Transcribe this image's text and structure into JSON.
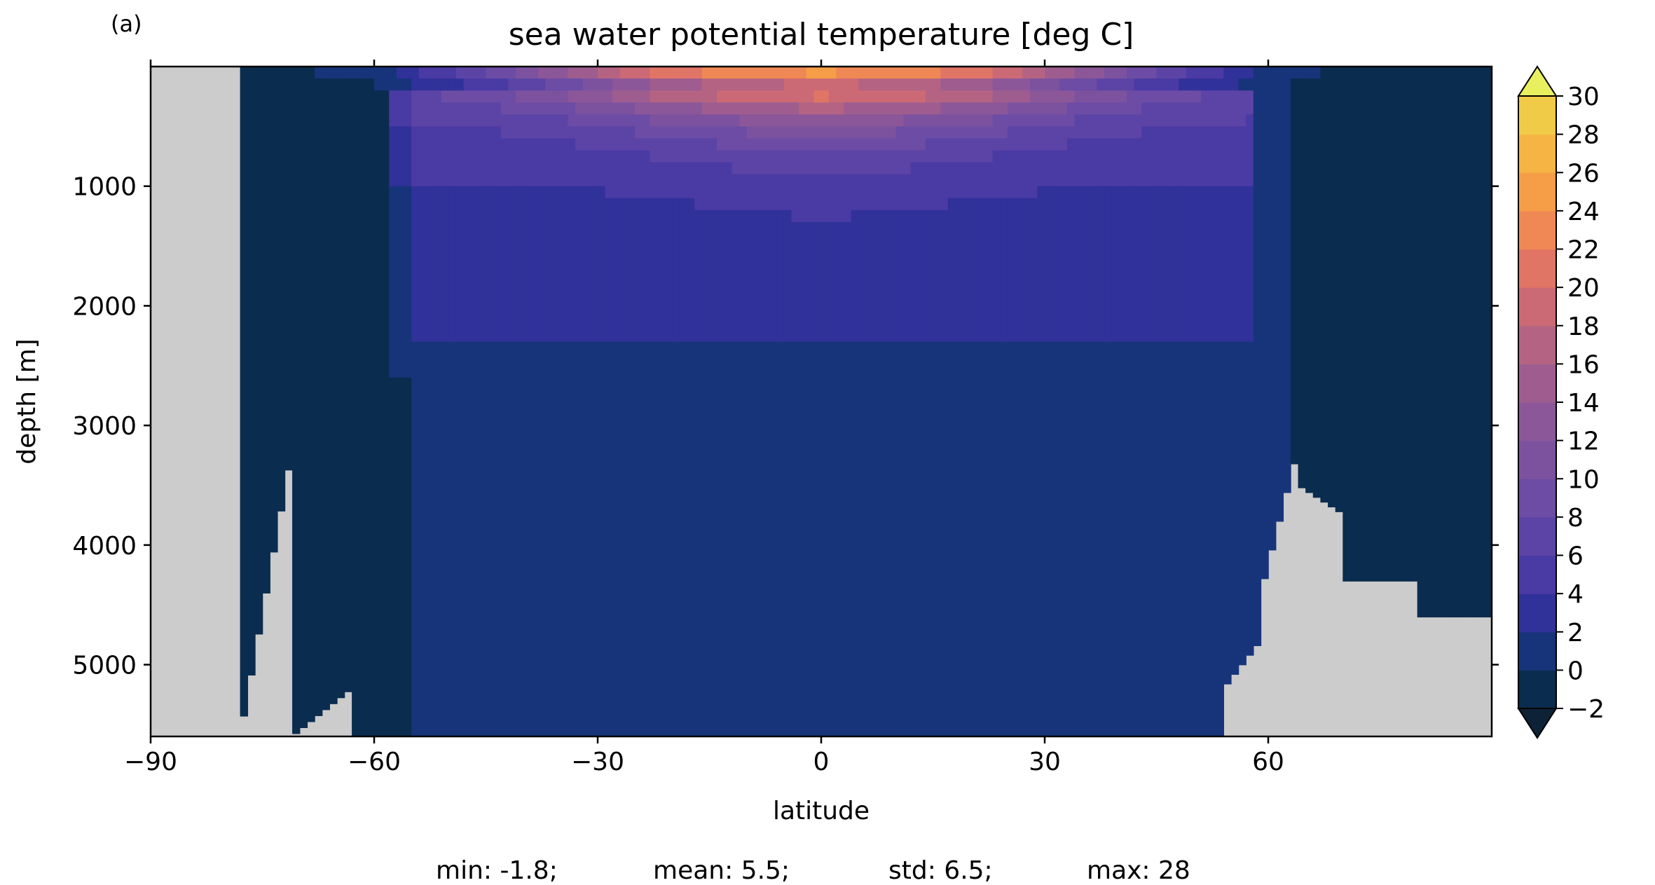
{
  "panel_label": "(a)",
  "chart_data": {
    "type": "heatmap",
    "title": "sea water potential temperature [deg C]",
    "xlabel": "latitude",
    "ylabel": "depth [m]",
    "xlim": [
      -90,
      90
    ],
    "ylim": [
      5600,
      0
    ],
    "y_inverted": true,
    "x_ticks": [
      -90,
      -60,
      -30,
      0,
      30,
      60
    ],
    "x_tick_labels": [
      "−90",
      "−60",
      "−30",
      "0",
      "30",
      "60"
    ],
    "y_ticks": [
      1000,
      2000,
      3000,
      4000,
      5000
    ],
    "y_tick_labels": [
      "1000",
      "2000",
      "3000",
      "4000",
      "5000"
    ],
    "land_color": "#cccccc",
    "colorbar": {
      "levels": [
        -2,
        0,
        2,
        4,
        6,
        8,
        10,
        12,
        14,
        16,
        18,
        20,
        22,
        24,
        26,
        28,
        30
      ],
      "tick_labels": [
        "−2",
        "0",
        "2",
        "4",
        "6",
        "8",
        "10",
        "12",
        "14",
        "16",
        "18",
        "20",
        "22",
        "24",
        "26",
        "28",
        "30"
      ],
      "colors": [
        "#0a2c4e",
        "#17347a",
        "#31319a",
        "#4a3aa4",
        "#5c44a6",
        "#6c4ca4",
        "#7c529f",
        "#8c5799",
        "#9f5d8f",
        "#b46482",
        "#cb6a75",
        "#e07566",
        "#f08855",
        "#f69e47",
        "#f5b443",
        "#f0cb47",
        "#e8e655"
      ],
      "extend": "both",
      "under_color": "#0d2237",
      "over_color": "#e8f060"
    },
    "stats": [
      {
        "label": "min:",
        "value": "-1.8;"
      },
      {
        "label": "mean:",
        "value": "5.5;"
      },
      {
        "label": "std:",
        "value": "6.5;"
      },
      {
        "label": "max:",
        "value": "28"
      }
    ]
  }
}
